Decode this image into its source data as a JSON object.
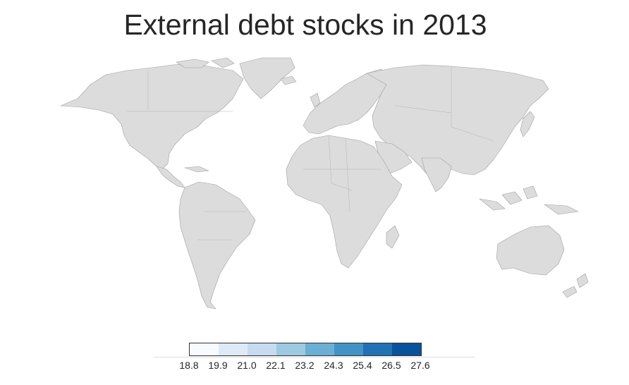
{
  "title": "External debt stocks in 2013",
  "legend": {
    "ticks": [
      "18.8",
      "19.9",
      "21.0",
      "22.1",
      "23.2",
      "24.3",
      "25.4",
      "26.5",
      "27.6"
    ],
    "bin_colors": [
      "#f7fbff",
      "#deebf7",
      "#c6dbef",
      "#9ecae1",
      "#6baed6",
      "#4292c6",
      "#2171b5",
      "#08519c"
    ]
  },
  "map": {
    "land_color": "#dcdcdc",
    "border_color": "#a0a0a0",
    "colored_countries": []
  }
}
